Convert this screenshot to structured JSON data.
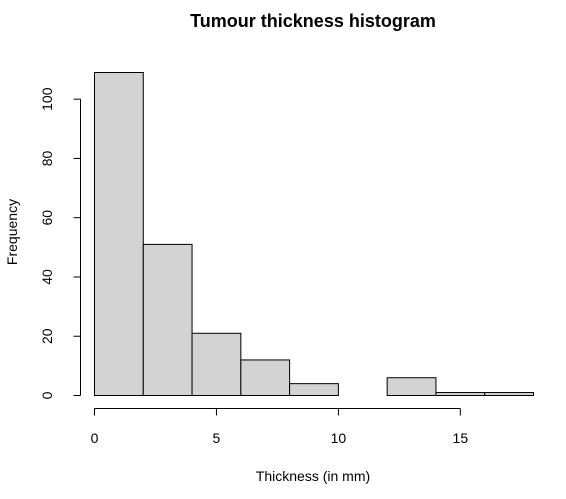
{
  "chart_data": {
    "type": "bar",
    "title": "Tumour thickness histogram",
    "xlabel": "Thickness (in mm)",
    "ylabel": "Frequency",
    "bins": [
      {
        "start": 0,
        "end": 2,
        "count": 109
      },
      {
        "start": 2,
        "end": 4,
        "count": 51
      },
      {
        "start": 4,
        "end": 6,
        "count": 21
      },
      {
        "start": 6,
        "end": 8,
        "count": 12
      },
      {
        "start": 8,
        "end": 10,
        "count": 4
      },
      {
        "start": 10,
        "end": 12,
        "count": 0
      },
      {
        "start": 12,
        "end": 14,
        "count": 6
      },
      {
        "start": 14,
        "end": 16,
        "count": 1
      },
      {
        "start": 16,
        "end": 18,
        "count": 1
      }
    ],
    "xticks": [
      0,
      5,
      10,
      15
    ],
    "yticks": [
      0,
      20,
      40,
      60,
      80,
      100
    ],
    "xlim": [
      0,
      18
    ],
    "ylim": [
      0,
      109
    ],
    "grid": false,
    "bar_color": "#d3d3d3",
    "border_color": "#000000"
  }
}
